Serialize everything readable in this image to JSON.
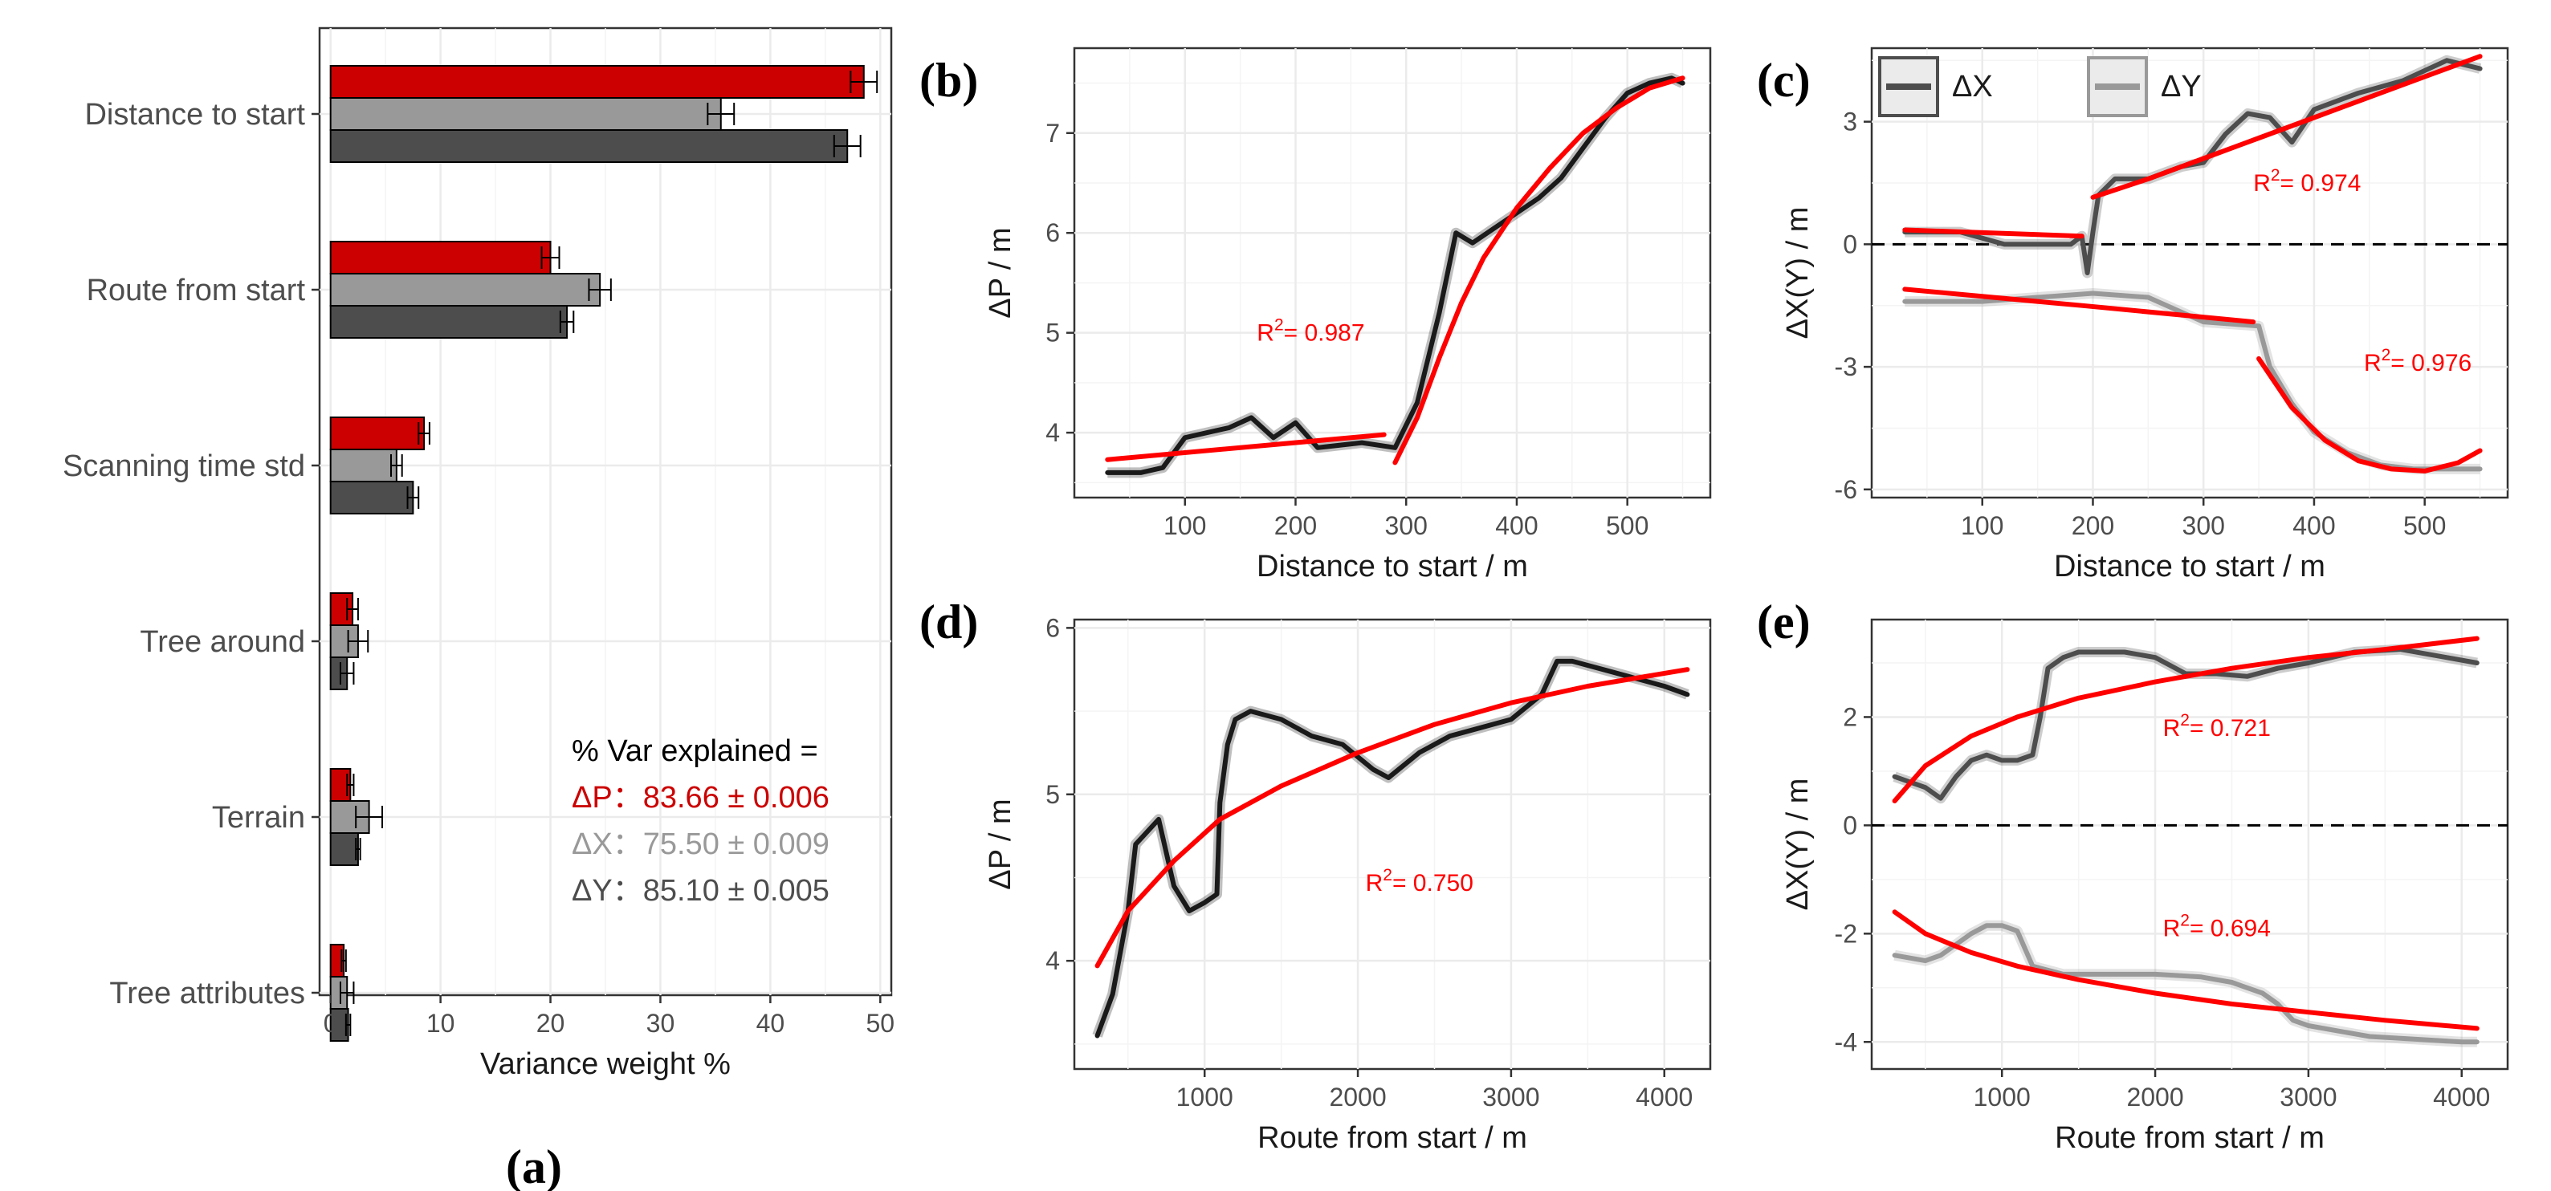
{
  "colors": {
    "dp": "#cc0000",
    "dx": "#999999",
    "dy": "#4d4d4d",
    "fit": "#ff0000",
    "obs": "#1a1a1a",
    "grid": "#ebebeb"
  },
  "chart_data": [
    {
      "id": "a",
      "panel_label": "(a)",
      "type": "bar",
      "orientation": "horizontal",
      "xlabel": "Variance weight %",
      "xlim": [
        -1,
        51
      ],
      "xticks": [
        0,
        10,
        20,
        30,
        40,
        50
      ],
      "categories": [
        "Distance to start",
        "Route from start",
        "Scanning time std",
        "Tree around",
        "Terrain",
        "Tree attributes"
      ],
      "series": [
        {
          "name": "ΔP",
          "color": "#cc0000",
          "values": [
            48.5,
            20.0,
            8.5,
            2.0,
            1.8,
            1.2
          ],
          "err": [
            1.2,
            0.8,
            0.5,
            0.5,
            0.3,
            0.2
          ]
        },
        {
          "name": "ΔX",
          "color": "#999999",
          "values": [
            35.5,
            24.5,
            6.0,
            2.5,
            3.5,
            1.5
          ],
          "err": [
            1.2,
            1.0,
            0.5,
            0.9,
            1.2,
            0.6
          ]
        },
        {
          "name": "ΔY",
          "color": "#4d4d4d",
          "values": [
            47.0,
            21.5,
            7.5,
            1.5,
            2.5,
            1.6
          ],
          "err": [
            1.2,
            0.6,
            0.5,
            0.6,
            0.2,
            0.2
          ]
        }
      ],
      "annotation": {
        "title": "% Var explained =",
        "lines": [
          {
            "label": "ΔP：83.66 ± 0.006",
            "color": "#cc0000"
          },
          {
            "label": "ΔX：75.50 ± 0.009",
            "color": "#999999"
          },
          {
            "label": "ΔY：85.10 ± 0.005",
            "color": "#4d4d4d"
          }
        ]
      }
    },
    {
      "id": "b",
      "panel_label": "(b)",
      "type": "line",
      "xlabel": "Distance to start / m",
      "ylabel": "ΔP / m",
      "xlim": [
        0,
        575
      ],
      "ylim": [
        3.35,
        7.85
      ],
      "xticks": [
        100,
        200,
        300,
        400,
        500
      ],
      "yticks": [
        4,
        5,
        6,
        7
      ],
      "observed": [
        {
          "x": [
            30,
            60,
            80,
            100,
            120,
            140,
            160,
            180,
            200,
            220,
            260,
            290,
            310,
            330,
            345,
            360,
            380,
            400,
            420,
            440,
            460,
            480,
            500,
            520,
            540,
            550
          ],
          "y": [
            3.6,
            3.6,
            3.65,
            3.95,
            4.0,
            4.05,
            4.15,
            3.95,
            4.1,
            3.85,
            3.9,
            3.85,
            4.3,
            5.2,
            6.0,
            5.9,
            6.05,
            6.2,
            6.35,
            6.55,
            6.85,
            7.15,
            7.4,
            7.5,
            7.55,
            7.5
          ]
        }
      ],
      "fits": [
        {
          "x": [
            30,
            280
          ],
          "y": [
            3.73,
            3.98
          ]
        },
        {
          "x": [
            290,
            310,
            330,
            350,
            370,
            400,
            430,
            460,
            490,
            520,
            550
          ],
          "y": [
            3.7,
            4.15,
            4.75,
            5.3,
            5.75,
            6.25,
            6.65,
            7.0,
            7.25,
            7.45,
            7.55
          ]
        }
      ],
      "annotations": [
        {
          "text": "R²= 0.987",
          "x": 165,
          "y": 4.92
        }
      ]
    },
    {
      "id": "c",
      "panel_label": "(c)",
      "type": "line",
      "xlabel": "Distance to start / m",
      "ylabel": "ΔX(Y) / m",
      "xlim": [
        0,
        575
      ],
      "ylim": [
        -6.2,
        4.8
      ],
      "xticks": [
        100,
        200,
        300,
        400,
        500
      ],
      "yticks": [
        -6,
        -3,
        0,
        3
      ],
      "zero_line": true,
      "legend": [
        "ΔX",
        "ΔY"
      ],
      "observed": [
        {
          "name": "ΔX",
          "color": "#4d4d4d",
          "x": [
            30,
            80,
            120,
            150,
            180,
            190,
            195,
            200,
            205,
            220,
            250,
            280,
            300,
            320,
            340,
            360,
            380,
            400,
            440,
            480,
            520,
            550
          ],
          "y": [
            0.3,
            0.3,
            0.0,
            0.0,
            0.0,
            0.2,
            -0.7,
            0.3,
            1.2,
            1.6,
            1.6,
            1.9,
            2.0,
            2.7,
            3.2,
            3.1,
            2.5,
            3.3,
            3.7,
            4.0,
            4.5,
            4.3
          ]
        },
        {
          "name": "ΔY",
          "color": "#999999",
          "x": [
            30,
            100,
            150,
            200,
            250,
            300,
            350,
            360,
            380,
            400,
            430,
            460,
            490,
            520,
            550
          ],
          "y": [
            -1.4,
            -1.4,
            -1.3,
            -1.2,
            -1.3,
            -1.9,
            -2.0,
            -3.0,
            -3.9,
            -4.6,
            -5.1,
            -5.4,
            -5.5,
            -5.5,
            -5.5
          ]
        }
      ],
      "fits": [
        {
          "x": [
            30,
            190
          ],
          "y": [
            0.35,
            0.2
          ]
        },
        {
          "x": [
            200,
            250,
            300,
            350,
            400,
            450,
            500,
            550
          ],
          "y": [
            1.15,
            1.6,
            2.1,
            2.6,
            3.1,
            3.6,
            4.1,
            4.6
          ]
        },
        {
          "x": [
            30,
            190,
            345
          ],
          "y": [
            -1.1,
            -1.5,
            -1.9
          ]
        },
        {
          "x": [
            350,
            380,
            410,
            440,
            470,
            500,
            530,
            550
          ],
          "y": [
            -2.8,
            -4.0,
            -4.8,
            -5.3,
            -5.5,
            -5.55,
            -5.35,
            -5.05
          ]
        }
      ],
      "annotations": [
        {
          "text": "R²= 0.974",
          "x": 345,
          "y": 1.3
        },
        {
          "text": "R²= 0.976",
          "x": 445,
          "y": -3.1
        }
      ]
    },
    {
      "id": "d",
      "panel_label": "(d)",
      "type": "line",
      "xlabel": "Route from start / m",
      "ylabel": "ΔP / m",
      "xlim": [
        150,
        4300
      ],
      "ylim": [
        3.35,
        6.05
      ],
      "xticks": [
        1000,
        2000,
        3000,
        4000
      ],
      "yticks": [
        4,
        5,
        6
      ],
      "observed": [
        {
          "x": [
            300,
            400,
            500,
            550,
            600,
            700,
            800,
            900,
            1000,
            1080,
            1100,
            1150,
            1200,
            1300,
            1500,
            1700,
            1900,
            2100,
            2200,
            2400,
            2600,
            2800,
            3000,
            3200,
            3300,
            3400,
            3600,
            3800,
            4000,
            4150
          ],
          "y": [
            3.55,
            3.8,
            4.3,
            4.7,
            4.75,
            4.85,
            4.45,
            4.3,
            4.35,
            4.4,
            4.95,
            5.3,
            5.45,
            5.5,
            5.45,
            5.35,
            5.3,
            5.15,
            5.1,
            5.25,
            5.35,
            5.4,
            5.45,
            5.6,
            5.8,
            5.8,
            5.75,
            5.7,
            5.65,
            5.6
          ]
        }
      ],
      "fits": [
        {
          "x": [
            300,
            500,
            800,
            1100,
            1500,
            2000,
            2500,
            3000,
            3500,
            4150
          ],
          "y": [
            3.97,
            4.3,
            4.6,
            4.85,
            5.05,
            5.25,
            5.42,
            5.55,
            5.65,
            5.75
          ]
        }
      ],
      "annotations": [
        {
          "text": "R²= 0.750",
          "x": 2050,
          "y": 4.42
        }
      ]
    },
    {
      "id": "e",
      "panel_label": "(e)",
      "type": "line",
      "xlabel": "Route from start / m",
      "ylabel": "ΔX(Y) / m",
      "xlim": [
        150,
        4300
      ],
      "ylim": [
        -4.5,
        3.8
      ],
      "xticks": [
        1000,
        2000,
        3000,
        4000
      ],
      "yticks": [
        -4,
        -2,
        0,
        2
      ],
      "zero_line": true,
      "observed": [
        {
          "name": "ΔX",
          "color": "#4d4d4d",
          "x": [
            300,
            400,
            500,
            600,
            700,
            800,
            900,
            1000,
            1100,
            1200,
            1250,
            1300,
            1400,
            1500,
            1800,
            2000,
            2200,
            2400,
            2600,
            2800,
            3000,
            3300,
            3600,
            3900,
            4100
          ],
          "y": [
            0.9,
            0.8,
            0.7,
            0.5,
            0.9,
            1.2,
            1.3,
            1.2,
            1.2,
            1.3,
            2.0,
            2.9,
            3.1,
            3.2,
            3.2,
            3.1,
            2.8,
            2.8,
            2.75,
            2.9,
            3.0,
            3.2,
            3.25,
            3.1,
            3.0
          ]
        },
        {
          "name": "ΔY",
          "color": "#999999",
          "x": [
            300,
            400,
            500,
            600,
            700,
            800,
            900,
            1000,
            1100,
            1200,
            1400,
            1700,
            2000,
            2300,
            2500,
            2600,
            2700,
            2800,
            2900,
            3000,
            3200,
            3400,
            3700,
            4000,
            4100
          ],
          "y": [
            -2.4,
            -2.45,
            -2.5,
            -2.4,
            -2.2,
            -2.0,
            -1.85,
            -1.85,
            -1.95,
            -2.6,
            -2.75,
            -2.75,
            -2.75,
            -2.8,
            -2.9,
            -3.0,
            -3.1,
            -3.3,
            -3.6,
            -3.7,
            -3.8,
            -3.9,
            -3.95,
            -4.0,
            -4.0
          ]
        }
      ],
      "fits": [
        {
          "x": [
            300,
            500,
            800,
            1100,
            1500,
            2000,
            2500,
            3000,
            3500,
            4100
          ],
          "y": [
            0.45,
            1.1,
            1.65,
            2.0,
            2.35,
            2.65,
            2.9,
            3.1,
            3.25,
            3.45
          ]
        },
        {
          "x": [
            300,
            500,
            800,
            1100,
            1500,
            2000,
            2500,
            3000,
            3500,
            4100
          ],
          "y": [
            -1.6,
            -2.0,
            -2.35,
            -2.6,
            -2.85,
            -3.1,
            -3.3,
            -3.45,
            -3.6,
            -3.75
          ]
        }
      ],
      "annotations": [
        {
          "text": "R²= 0.721",
          "x": 2050,
          "y": 1.65
        },
        {
          "text": "R²= 0.694",
          "x": 2050,
          "y": -2.05
        }
      ]
    }
  ]
}
